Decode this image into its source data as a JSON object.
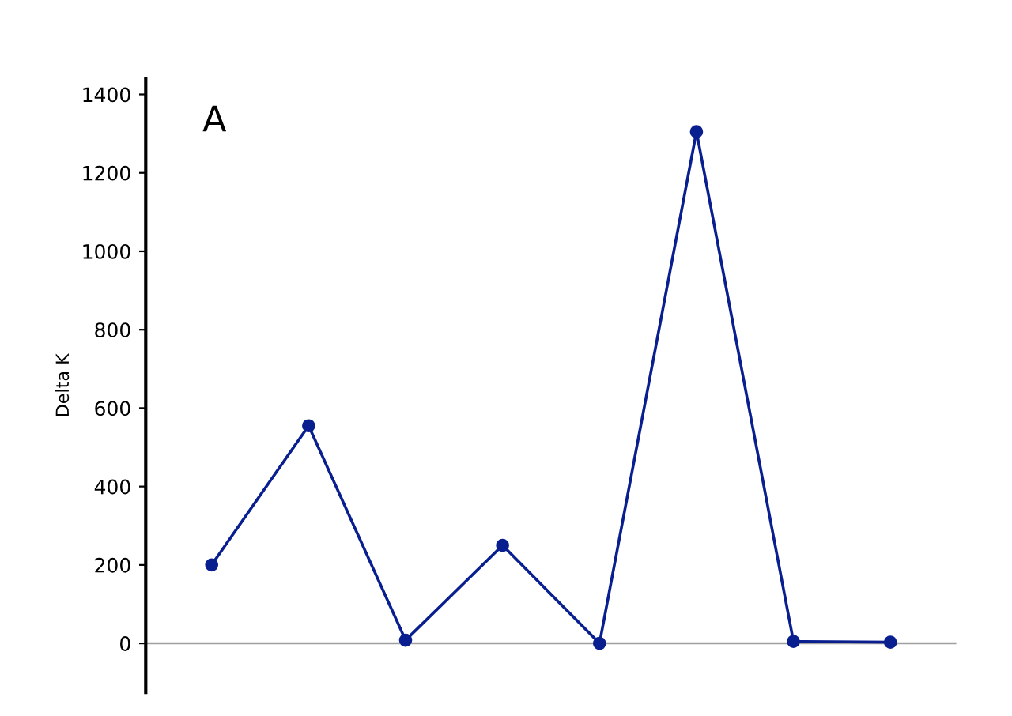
{
  "chart_data": {
    "type": "line",
    "title": "A",
    "ylabel": "Delta K",
    "categories": [
      null,
      null,
      null,
      null,
      null,
      null,
      null,
      null
    ],
    "series": [
      {
        "color": "#0a1f8f",
        "values": [
          200,
          555,
          8,
          250,
          0,
          1305,
          5,
          3
        ]
      }
    ],
    "ylim": [
      -125,
      1440
    ],
    "yticks": [
      0,
      200,
      400,
      600,
      800,
      1000,
      1200,
      1400
    ],
    "ref_lines": [
      {
        "axis": "y",
        "value": 0,
        "color": "#a0a0a0"
      }
    ],
    "marker": "circle",
    "line_style": "solid",
    "grid": false,
    "legend": false,
    "tick_labels": "y"
  }
}
